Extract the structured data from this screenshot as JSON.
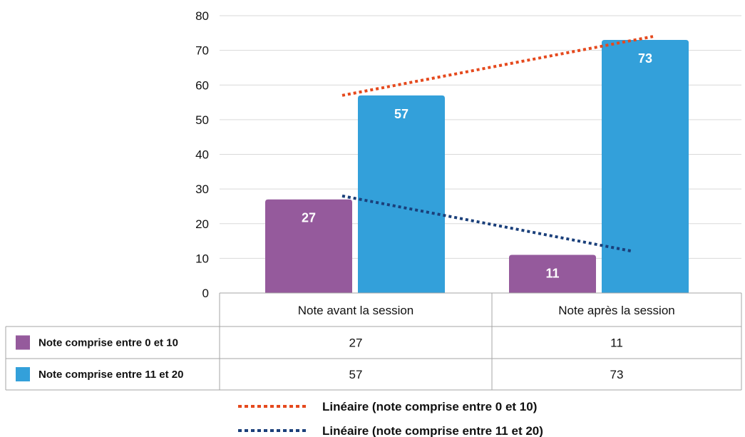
{
  "chart_data": {
    "type": "bar",
    "categories": [
      "Note avant la session",
      "Note après la session"
    ],
    "series": [
      {
        "name": "Note comprise entre 0 et 10",
        "values": [
          27,
          11
        ],
        "color": "#955a9c"
      },
      {
        "name": "Note comprise entre 11 et 20",
        "values": [
          57,
          73
        ],
        "color": "#33a0da"
      }
    ],
    "trendlines": [
      {
        "name": "Linéaire (note comprise entre 0 et 10)",
        "values": [
          57,
          74
        ],
        "color": "#e5491d",
        "style": "dotted"
      },
      {
        "name": "Linéaire (note comprise entre 11 et 20)",
        "values": [
          28,
          12
        ],
        "color": "#1a3f7a",
        "style": "dotted"
      }
    ],
    "ylim": [
      0,
      80
    ],
    "yticks": [
      0,
      10,
      20,
      30,
      40,
      50,
      60,
      70,
      80
    ],
    "grid": true,
    "data_table": true,
    "legend_position": "bottom"
  }
}
